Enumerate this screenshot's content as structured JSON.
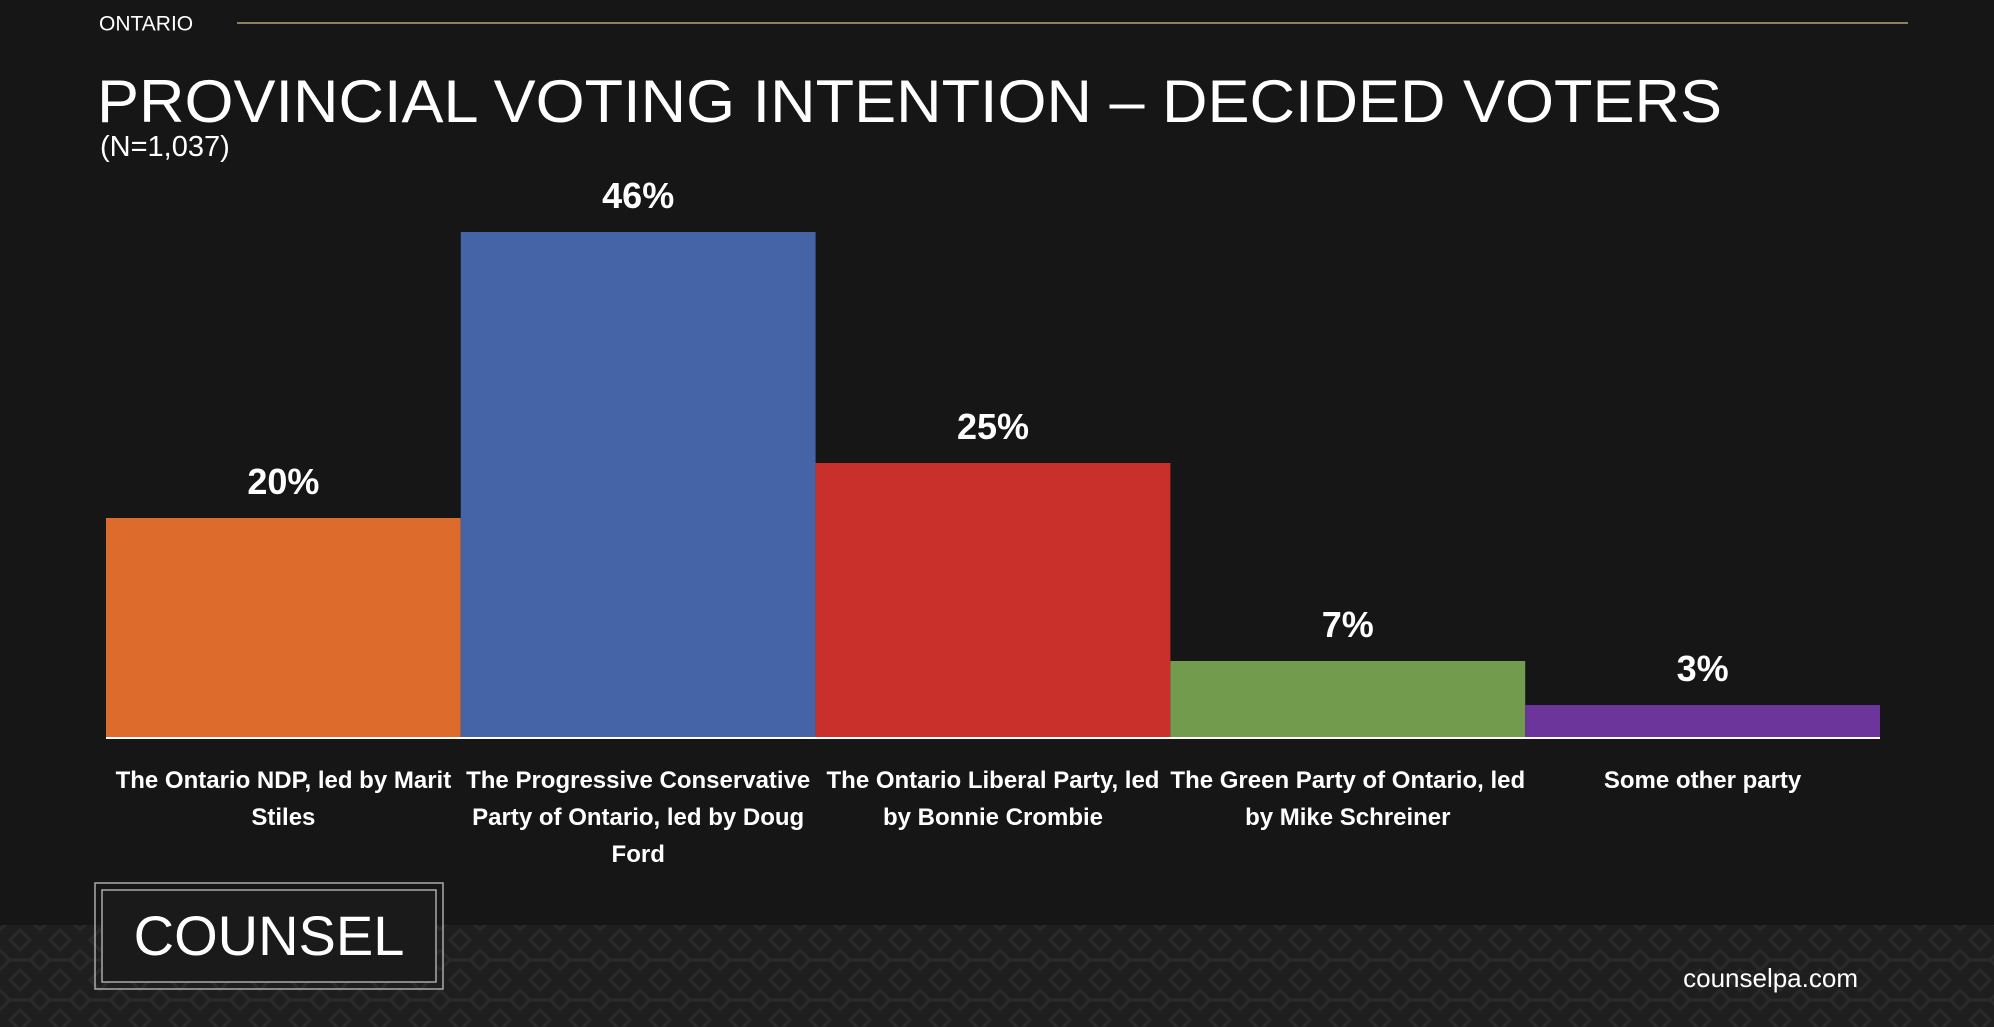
{
  "region": "ONTARIO",
  "logo": "COUNSEL",
  "website": "counselpa.com",
  "chart_data": {
    "type": "bar",
    "title": "PROVINCIAL VOTING INTENTION – DECIDED VOTERS",
    "subtitle": "(N=1,037)",
    "categories": [
      "The Ontario NDP, led by Marit Stiles",
      "The Progressive Conservative Party of Ontario, led by Doug Ford",
      "The Ontario Liberal Party, led by Bonnie Crombie",
      "The Green Party of Ontario, led by Mike Schreiner",
      "Some other party"
    ],
    "values": [
      20,
      46,
      25,
      7,
      3
    ],
    "value_labels": [
      "20%",
      "46%",
      "25%",
      "7%",
      "3%"
    ],
    "colors": [
      "#dc6b2c",
      "#4564a8",
      "#c9302c",
      "#739b4e",
      "#6b359b"
    ]
  }
}
